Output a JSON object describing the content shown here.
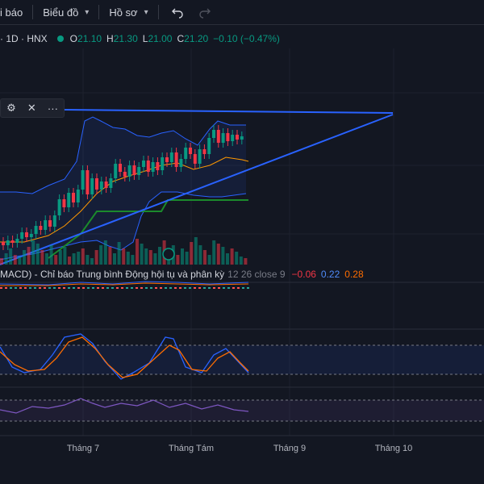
{
  "toolbar": {
    "alerts_label": "i báo",
    "chart_label": "Biểu đồ",
    "profile_label": "Hồ sơ",
    "undo_icon": "undo-icon",
    "redo_icon": "redo-icon"
  },
  "legend": {
    "symbol": "· 1D · HNX",
    "open_key": "O",
    "open": "21.10",
    "high_key": "H",
    "high": "21.30",
    "low_key": "L",
    "low": "21.00",
    "close_key": "C",
    "close": "21.20",
    "change": "−0.10 (−0.47%)",
    "color_up": "#089981"
  },
  "drawing_tools": {
    "settings_icon": "gear-icon",
    "close_icon": "close-icon",
    "more_label": "···"
  },
  "macd": {
    "name": "MACD) - Chỉ báo Trung bình Động hội tụ và phân kỳ",
    "params": "12 26 close 9",
    "v1": "−0.06",
    "v2": "0.22",
    "v3": "0.28"
  },
  "xaxis": {
    "labels": [
      "Tháng 7",
      "Tháng Tám",
      "Tháng 9",
      "Tháng 10"
    ]
  },
  "chart_data": {
    "type": "candlestick",
    "title": "",
    "last_ohlc": {
      "open": 21.1,
      "high": 21.3,
      "low": 21.0,
      "close": 21.2
    },
    "change": -0.1,
    "change_pct": -0.47,
    "indicators": [
      "Bollinger Bands",
      "Volume",
      "MACD",
      "Stochastic",
      "RSI"
    ],
    "x_ticks": [
      "Tháng 7",
      "Tháng Tám",
      "Tháng 9",
      "Tháng 10"
    ],
    "grid": true,
    "colors": {
      "up": "#089981",
      "down": "#f23645",
      "trend": "#2962ff",
      "bands": "#2962ff",
      "rsi": "#7e57c2"
    }
  }
}
